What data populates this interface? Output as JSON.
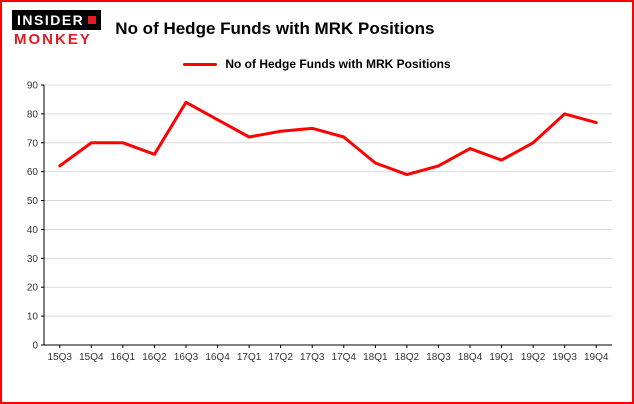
{
  "brand": {
    "line1": "INSIDER",
    "line2": "MONKEY",
    "accent": "#e31b23"
  },
  "header": {
    "title": "No of Hedge Funds with MRK Positions"
  },
  "legend": {
    "label": "No of Hedge Funds with MRK Positions"
  },
  "chart_data": {
    "type": "line",
    "title": "No of Hedge Funds with MRK Positions",
    "categories": [
      "15Q3",
      "15Q4",
      "16Q1",
      "16Q2",
      "16Q3",
      "16Q4",
      "17Q1",
      "17Q2",
      "17Q3",
      "17Q4",
      "18Q1",
      "18Q2",
      "18Q3",
      "18Q4",
      "19Q1",
      "19Q2",
      "19Q3",
      "19Q4"
    ],
    "values": [
      62,
      70,
      70,
      66,
      84,
      78,
      72,
      74,
      75,
      72,
      63,
      59,
      62,
      68,
      64,
      70,
      80,
      77
    ],
    "xlabel": "",
    "ylabel": "",
    "ylim": [
      0,
      90
    ],
    "ytick_step": 10,
    "line_color": "#ff0000",
    "grid": true,
    "legend_position": "top"
  }
}
